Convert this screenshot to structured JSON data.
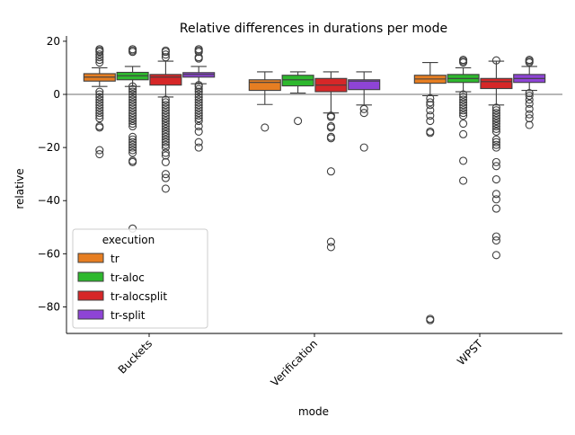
{
  "chart_data": {
    "type": "boxplot",
    "title": "Relative differences in durations per mode",
    "xlabel": "mode",
    "ylabel": "relative",
    "categories": [
      "Buckets",
      "Verification",
      "WPST"
    ],
    "ylim": [
      -90,
      22
    ],
    "yticks": [
      20,
      0,
      -20,
      -40,
      -60,
      -80
    ],
    "ytick_labels": [
      "20",
      "0",
      "−20",
      "−40",
      "−60",
      "−80"
    ],
    "reference_line": 0,
    "grid": false,
    "legend": {
      "title": "execution",
      "position": "lower-left"
    },
    "series": [
      {
        "name": "tr",
        "color": "#E67E22",
        "boxes": [
          {
            "q1": 5,
            "median": 6.5,
            "q3": 7.8,
            "whisker_low": 3,
            "whisker_high": 10,
            "outliers": [
              17,
              16.5,
              16,
              15,
              14,
              13,
              12,
              1,
              0,
              -1,
              -2,
              -3,
              -4,
              -5,
              -6,
              -7,
              -8,
              -9,
              -12,
              -12.5,
              -21,
              -22.5
            ]
          },
          {
            "q1": 1.5,
            "median": 4.5,
            "q3": 5.5,
            "whisker_low": -3.8,
            "whisker_high": 8.5,
            "outliers": [
              -12.5
            ]
          },
          {
            "q1": 4.2,
            "median": 5.8,
            "q3": 7.2,
            "whisker_low": -0.5,
            "whisker_high": 12,
            "outliers": [
              -1.5,
              -3,
              -4,
              -6,
              -8,
              -10,
              -14,
              -14.5,
              -84.5,
              -85
            ]
          }
        ]
      },
      {
        "name": "tr-aloc",
        "color": "#2EB82E",
        "boxes": [
          {
            "q1": 5.5,
            "median": 7,
            "q3": 8.3,
            "whisker_low": 3,
            "whisker_high": 10.5,
            "outliers": [
              17,
              16.5,
              16,
              3,
              2,
              1,
              0,
              -1,
              -2,
              -3,
              -4,
              -5,
              -6,
              -7,
              -8,
              -9,
              -10,
              -11,
              -12,
              -16,
              -17,
              -18,
              -19,
              -20,
              -21,
              -22,
              -25,
              -25.5,
              -50.5
            ]
          },
          {
            "q1": 3.2,
            "median": 5.5,
            "q3": 7.2,
            "whisker_low": 0.5,
            "whisker_high": 8.5,
            "outliers": [
              -10
            ]
          },
          {
            "q1": 4.5,
            "median": 6,
            "q3": 7.5,
            "whisker_low": 1,
            "whisker_high": 10,
            "outliers": [
              13,
              12.5,
              12,
              0,
              -1,
              -2,
              -3,
              -4,
              -5,
              -6,
              -7,
              -8,
              -11,
              -15,
              -25,
              -32.5
            ]
          }
        ]
      },
      {
        "name": "tr-alocsplit",
        "color": "#D62728",
        "boxes": [
          {
            "q1": 3.5,
            "median": 6.5,
            "q3": 7.5,
            "whisker_low": -1,
            "whisker_high": 12.5,
            "outliers": [
              16.5,
              16,
              15,
              14,
              -2,
              -3,
              -4,
              -5,
              -6,
              -7,
              -8,
              -9,
              -10,
              -11,
              -12,
              -13,
              -14,
              -15,
              -16,
              -17,
              -18,
              -19,
              -20,
              -22,
              -23,
              -25.5,
              -30,
              -31.5,
              -35.5
            ]
          },
          {
            "q1": 1,
            "median": 3.5,
            "q3": 6,
            "whisker_low": -7,
            "whisker_high": 8.5,
            "outliers": [
              -8,
              -8.5,
              -12,
              -12.5,
              -16,
              -16.5,
              -29,
              -55.5,
              -57.5
            ]
          },
          {
            "q1": 2.2,
            "median": 4.8,
            "q3": 6,
            "whisker_low": -4,
            "whisker_high": 12.5,
            "outliers": [
              12.8,
              -5,
              -6,
              -7,
              -8,
              -9,
              -10,
              -11,
              -12,
              -13,
              -14,
              -17,
              -18,
              -19,
              -20,
              -25.5,
              -27,
              -32,
              -37.5,
              -39.5,
              -43,
              -53.5,
              -55,
              -60.5
            ]
          }
        ]
      },
      {
        "name": "tr-split",
        "color": "#8E44D6",
        "boxes": [
          {
            "q1": 6.5,
            "median": 7.5,
            "q3": 8.2,
            "whisker_low": 4,
            "whisker_high": 10.5,
            "outliers": [
              17,
              16.5,
              16,
              14,
              13.5,
              3.5,
              3,
              2,
              1,
              0,
              -1,
              -2,
              -3,
              -4,
              -5,
              -6,
              -7,
              -8,
              -9,
              -10,
              -12,
              -14,
              -18,
              -20
            ]
          },
          {
            "q1": 1.8,
            "median": 5,
            "q3": 5.5,
            "whisker_low": -4,
            "whisker_high": 8.5,
            "outliers": [
              -5.5,
              -7,
              -20
            ]
          },
          {
            "q1": 4.5,
            "median": 6,
            "q3": 7.5,
            "whisker_low": 1.5,
            "whisker_high": 10.5,
            "outliers": [
              13,
              12.5,
              12,
              0.5,
              -0.5,
              -2,
              -3.5,
              -5.5,
              -7.5,
              -9,
              -11.5
            ]
          }
        ]
      }
    ]
  }
}
